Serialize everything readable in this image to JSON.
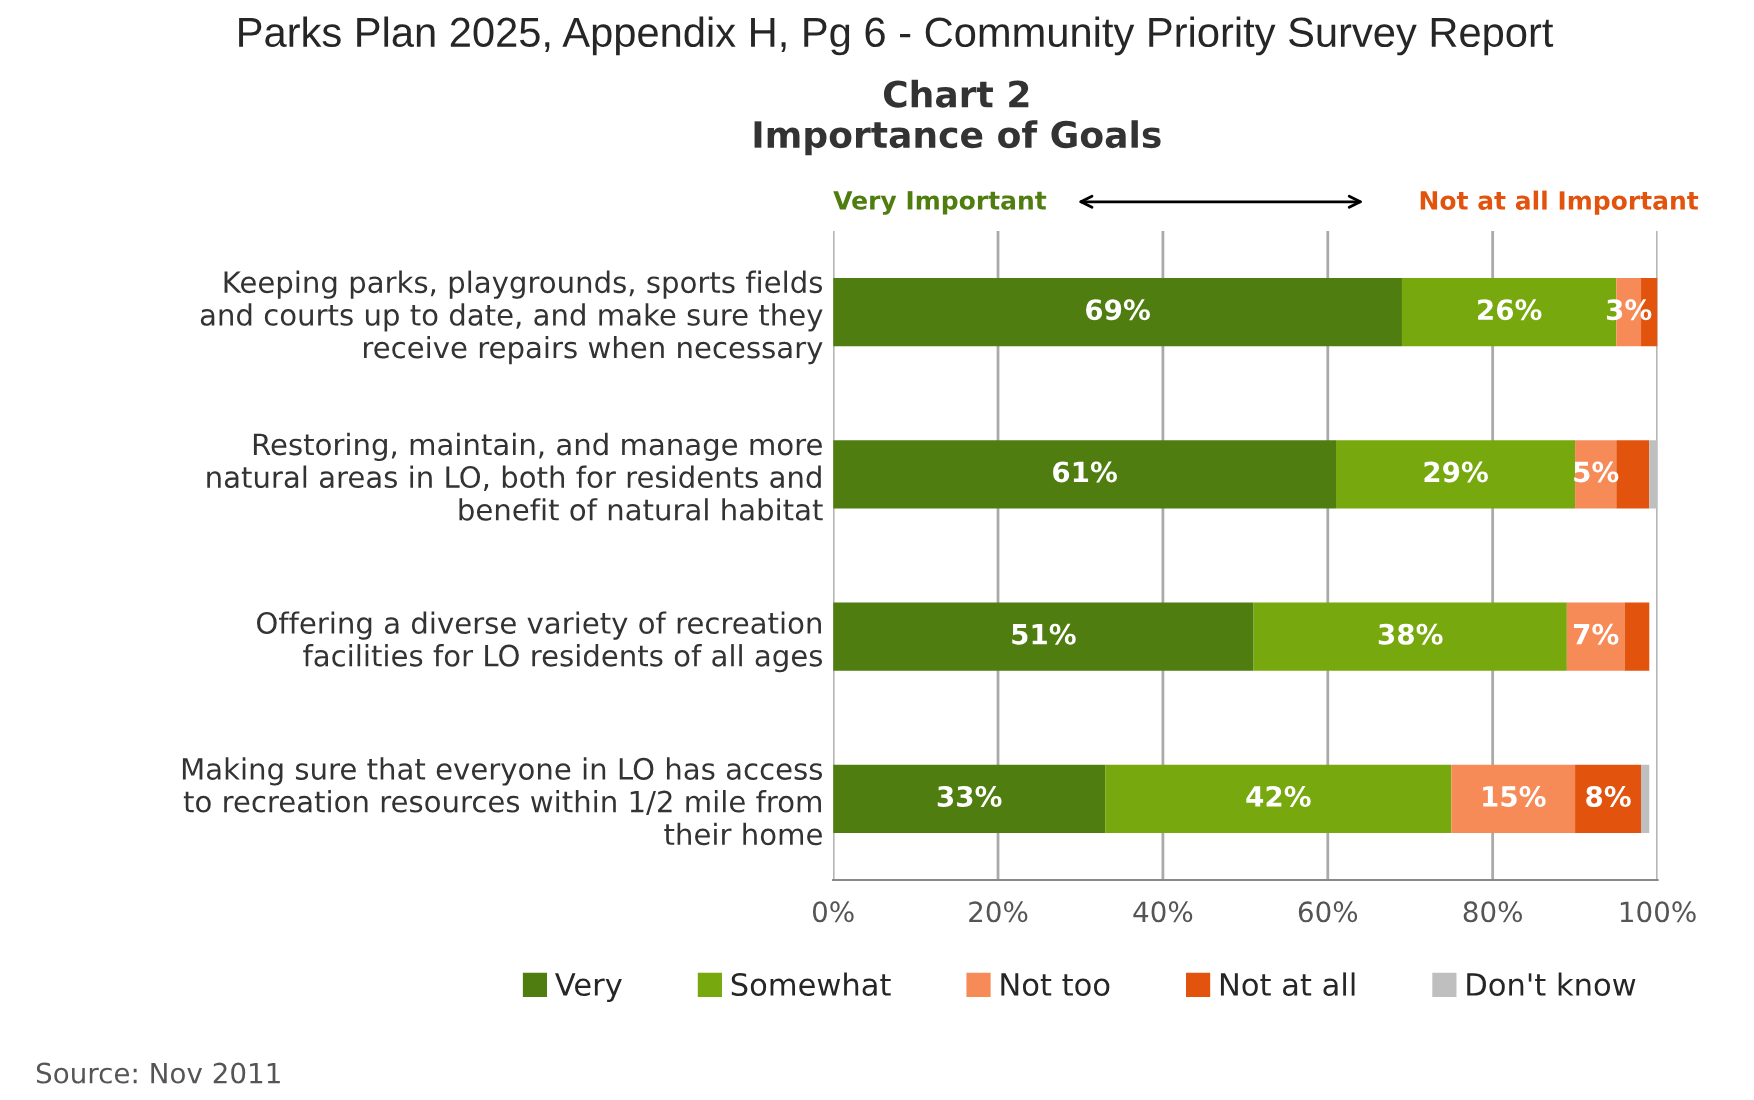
{
  "chart_data": {
    "type": "bar",
    "orientation": "horizontal",
    "stacked": true,
    "title": "Parks Plan 2025, Appendix H, Pg 6 - Community Priority Survey Report",
    "subtitle": "Chart 2\nImportance of Goals",
    "categories": [
      "Keeping parks, playgrounds, sports fields\nand courts up to date, and make sure they\nreceive repairs when necessary",
      "Restoring, maintain, and manage more\nnatural areas in LO, both for residents and\nbenefit of natural habitat",
      "Offering a diverse variety of recreation\nfacilities for LO residents of all ages",
      "Making sure that everyone in LO has access\nto recreation resources within 1/2 mile from\ntheir home"
    ],
    "series": [
      {
        "name": "Very",
        "color": "#4f7d0f",
        "values": [
          69,
          61,
          51,
          33
        ],
        "value_labels": [
          "69%",
          "61%",
          "51%",
          "33%"
        ]
      },
      {
        "name": "Somewhat",
        "color": "#77a80d",
        "values": [
          26,
          29,
          38,
          42
        ],
        "value_labels": [
          "26%",
          "29%",
          "38%",
          "42%"
        ]
      },
      {
        "name": "Not too",
        "color": "#f68b58",
        "values": [
          3,
          5,
          7,
          15
        ],
        "value_labels": [
          "3%",
          "5%",
          "7%",
          "15%"
        ]
      },
      {
        "name": "Not at all",
        "color": "#e2530e",
        "values": [
          2,
          4,
          3,
          8
        ],
        "value_labels": [
          null,
          null,
          null,
          "8%"
        ]
      },
      {
        "name": "Don't know",
        "color": "#bfbfbf",
        "values": [
          null,
          1,
          null,
          1
        ],
        "value_labels": [
          null,
          null,
          null,
          null
        ]
      }
    ],
    "xlim": [
      0,
      100
    ],
    "xticks": [
      {
        "value": 0,
        "label": "0%"
      },
      {
        "value": 20,
        "label": "20%"
      },
      {
        "value": 40,
        "label": "40%"
      },
      {
        "value": 60,
        "label": "60%"
      },
      {
        "value": 80,
        "label": "80%"
      },
      {
        "value": 100,
        "label": "100%"
      }
    ],
    "grid": "x",
    "legend": "bottom",
    "annotations": [
      "Very Important",
      "Not at all Important",
      "Source: Nov 2011"
    ]
  }
}
